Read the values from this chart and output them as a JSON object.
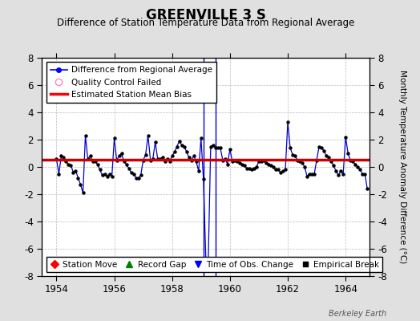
{
  "title": "GREENVILLE 3 S",
  "subtitle": "Difference of Station Temperature Data from Regional Average",
  "ylabel_right": "Monthly Temperature Anomaly Difference (°C)",
  "xlim": [
    1953.5,
    1964.83
  ],
  "ylim": [
    -8,
    8
  ],
  "yticks": [
    -8,
    -6,
    -4,
    -2,
    0,
    2,
    4,
    6,
    8
  ],
  "xticks": [
    1954,
    1956,
    1958,
    1960,
    1962,
    1964
  ],
  "background_color": "#e0e0e0",
  "plot_bg_color": "#ffffff",
  "grid_color": "#bbbbbb",
  "line_color": "#0000cc",
  "bias_color": "#cc0000",
  "bias_value": 0.55,
  "vline_positions": [
    1959.08,
    1959.5
  ],
  "watermark": "Berkeley Earth",
  "time_series": [
    [
      1954.0,
      0.6
    ],
    [
      1954.083,
      -0.5
    ],
    [
      1954.167,
      0.8
    ],
    [
      1954.25,
      0.7
    ],
    [
      1954.333,
      0.4
    ],
    [
      1954.417,
      0.2
    ],
    [
      1954.5,
      0.1
    ],
    [
      1954.583,
      -0.4
    ],
    [
      1954.667,
      -0.3
    ],
    [
      1954.75,
      -0.8
    ],
    [
      1954.833,
      -1.3
    ],
    [
      1954.917,
      -1.9
    ],
    [
      1955.0,
      2.3
    ],
    [
      1955.083,
      0.6
    ],
    [
      1955.167,
      0.8
    ],
    [
      1955.25,
      0.4
    ],
    [
      1955.333,
      0.4
    ],
    [
      1955.417,
      0.2
    ],
    [
      1955.5,
      -0.2
    ],
    [
      1955.583,
      -0.6
    ],
    [
      1955.667,
      -0.5
    ],
    [
      1955.75,
      -0.7
    ],
    [
      1955.833,
      -0.5
    ],
    [
      1955.917,
      -0.7
    ],
    [
      1956.0,
      2.1
    ],
    [
      1956.083,
      0.5
    ],
    [
      1956.167,
      0.8
    ],
    [
      1956.25,
      1.0
    ],
    [
      1956.333,
      0.4
    ],
    [
      1956.417,
      0.2
    ],
    [
      1956.5,
      -0.1
    ],
    [
      1956.583,
      -0.4
    ],
    [
      1956.667,
      -0.5
    ],
    [
      1956.75,
      -0.8
    ],
    [
      1956.833,
      -0.8
    ],
    [
      1956.917,
      -0.6
    ],
    [
      1957.0,
      0.5
    ],
    [
      1957.083,
      0.9
    ],
    [
      1957.167,
      2.3
    ],
    [
      1957.25,
      0.5
    ],
    [
      1957.333,
      0.6
    ],
    [
      1957.417,
      1.8
    ],
    [
      1957.5,
      0.6
    ],
    [
      1957.583,
      0.6
    ],
    [
      1957.667,
      0.7
    ],
    [
      1957.75,
      0.4
    ],
    [
      1957.833,
      0.6
    ],
    [
      1957.917,
      0.4
    ],
    [
      1958.0,
      0.8
    ],
    [
      1958.083,
      1.1
    ],
    [
      1958.167,
      1.5
    ],
    [
      1958.25,
      1.9
    ],
    [
      1958.333,
      1.6
    ],
    [
      1958.417,
      1.5
    ],
    [
      1958.5,
      1.1
    ],
    [
      1958.583,
      0.7
    ],
    [
      1958.667,
      0.5
    ],
    [
      1958.75,
      0.8
    ],
    [
      1958.833,
      0.4
    ],
    [
      1958.917,
      -0.3
    ],
    [
      1959.0,
      2.1
    ],
    [
      1959.083,
      -0.9
    ],
    [
      1959.167,
      -6.8
    ],
    [
      1959.25,
      -6.9
    ],
    [
      1959.333,
      1.5
    ],
    [
      1959.417,
      1.6
    ],
    [
      1959.5,
      1.4
    ],
    [
      1959.583,
      1.4
    ],
    [
      1959.667,
      1.4
    ],
    [
      1959.75,
      0.5
    ],
    [
      1959.833,
      0.6
    ],
    [
      1959.917,
      0.2
    ],
    [
      1960.0,
      1.3
    ],
    [
      1960.083,
      0.4
    ],
    [
      1960.167,
      0.5
    ],
    [
      1960.25,
      0.4
    ],
    [
      1960.333,
      0.3
    ],
    [
      1960.417,
      0.2
    ],
    [
      1960.5,
      0.1
    ],
    [
      1960.583,
      -0.1
    ],
    [
      1960.667,
      -0.1
    ],
    [
      1960.75,
      -0.2
    ],
    [
      1960.833,
      -0.1
    ],
    [
      1960.917,
      0.0
    ],
    [
      1961.0,
      0.4
    ],
    [
      1961.083,
      0.4
    ],
    [
      1961.167,
      0.5
    ],
    [
      1961.25,
      0.3
    ],
    [
      1961.333,
      0.2
    ],
    [
      1961.417,
      0.1
    ],
    [
      1961.5,
      0.0
    ],
    [
      1961.583,
      -0.2
    ],
    [
      1961.667,
      -0.2
    ],
    [
      1961.75,
      -0.4
    ],
    [
      1961.833,
      -0.3
    ],
    [
      1961.917,
      -0.2
    ],
    [
      1962.0,
      3.3
    ],
    [
      1962.083,
      1.4
    ],
    [
      1962.167,
      0.9
    ],
    [
      1962.25,
      0.8
    ],
    [
      1962.333,
      0.5
    ],
    [
      1962.417,
      0.4
    ],
    [
      1962.5,
      0.3
    ],
    [
      1962.583,
      0.0
    ],
    [
      1962.667,
      -0.7
    ],
    [
      1962.75,
      -0.5
    ],
    [
      1962.833,
      -0.5
    ],
    [
      1962.917,
      -0.5
    ],
    [
      1963.0,
      0.5
    ],
    [
      1963.083,
      1.5
    ],
    [
      1963.167,
      1.4
    ],
    [
      1963.25,
      1.2
    ],
    [
      1963.333,
      0.8
    ],
    [
      1963.417,
      0.7
    ],
    [
      1963.5,
      0.4
    ],
    [
      1963.583,
      0.1
    ],
    [
      1963.667,
      -0.3
    ],
    [
      1963.75,
      -0.6
    ],
    [
      1963.833,
      -0.3
    ],
    [
      1963.917,
      -0.5
    ],
    [
      1964.0,
      2.2
    ],
    [
      1964.083,
      1.0
    ],
    [
      1964.167,
      0.5
    ],
    [
      1964.25,
      0.4
    ],
    [
      1964.333,
      0.2
    ],
    [
      1964.417,
      0.0
    ],
    [
      1964.5,
      -0.2
    ],
    [
      1964.583,
      -0.5
    ],
    [
      1964.667,
      -0.5
    ],
    [
      1964.75,
      -1.6
    ]
  ]
}
